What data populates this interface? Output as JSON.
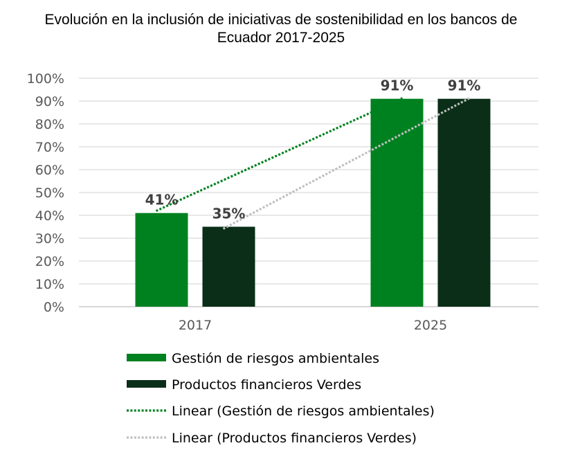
{
  "chart_data": {
    "type": "bar",
    "title": "Evolución en la inclusión de iniciativas de sostenibilidad en los bancos de Ecuador 2017-2025",
    "title_lines": [
      "Evolución en la inclusión de iniciativas de sostenibilidad en los bancos de",
      "Ecuador 2017-2025"
    ],
    "categories": [
      "2017",
      "2025"
    ],
    "series": [
      {
        "name": "Gestión de riesgos ambientales",
        "values": [
          41,
          91
        ],
        "labels": [
          "41%",
          "91%"
        ],
        "color": "#008120"
      },
      {
        "name": "Productos financieros Verdes",
        "values": [
          35,
          91
        ],
        "labels": [
          "35%",
          "91%"
        ],
        "color": "#0A2E18"
      }
    ],
    "trendlines": [
      {
        "name": "Linear (Gestión de riesgos ambientales)",
        "series": 0,
        "color": "#008120",
        "style": "dotted"
      },
      {
        "name": "Linear (Productos financieros Verdes)",
        "series": 1,
        "color": "#BFBFBF",
        "style": "dotted"
      }
    ],
    "xlabel": "",
    "ylabel": "",
    "ylim": [
      0,
      100
    ],
    "yticks": [
      "0%",
      "10%",
      "20%",
      "30%",
      "40%",
      "50%",
      "60%",
      "70%",
      "80%",
      "90%",
      "100%"
    ],
    "grid": true,
    "legend_position": "bottom"
  }
}
